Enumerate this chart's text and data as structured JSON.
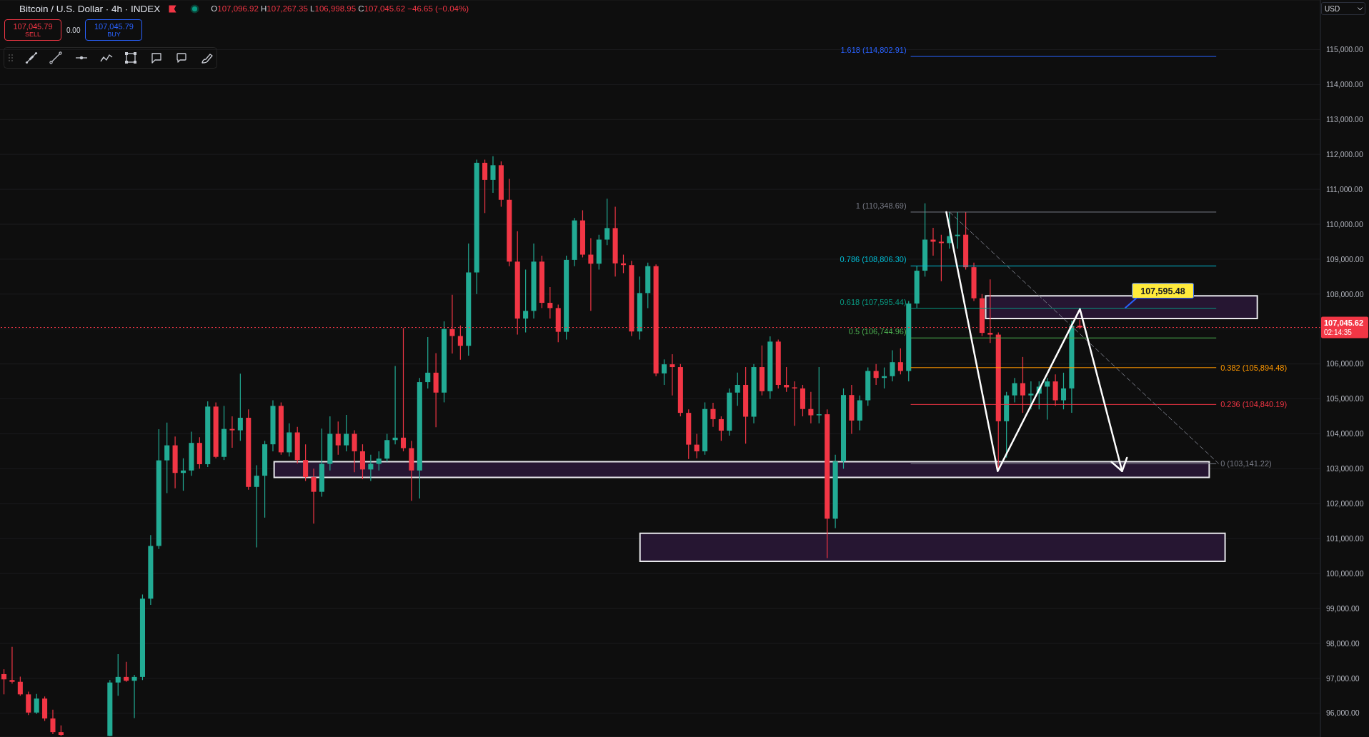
{
  "chart_data": {
    "type": "candlestick",
    "title": "Bitcoin / U.S. Dollar · 4h · INDEX",
    "subtitle": "O107,096.92 H107,267.35 L106,998.95 C107,045.62 −46.65 (−0.04%)",
    "ylabel": "USD",
    "categories": [
      null,
      null,
      null,
      null,
      null,
      null,
      null,
      null,
      null,
      null,
      null,
      null,
      null,
      null,
      null,
      null,
      null,
      null,
      null,
      null,
      null,
      null,
      null,
      null,
      null,
      null,
      null,
      null,
      null,
      null,
      null,
      null,
      null,
      null,
      null,
      null,
      null,
      null,
      null,
      null,
      null,
      null,
      null,
      null,
      null,
      null,
      null,
      null,
      null,
      null,
      null,
      null,
      null,
      null,
      null,
      null,
      null,
      null,
      null,
      null,
      null,
      null,
      null,
      null,
      null,
      null,
      null,
      null,
      null,
      null,
      null,
      null,
      null,
      null,
      null,
      null,
      null,
      null,
      null,
      null,
      null,
      null,
      null,
      null,
      null,
      null,
      null,
      null,
      null,
      null,
      null,
      null,
      null,
      null,
      null,
      null,
      null,
      null,
      null,
      null,
      null,
      null,
      null,
      null,
      null,
      null,
      null,
      null,
      null,
      null,
      null,
      null,
      null,
      null,
      null,
      null,
      null,
      null,
      null,
      null,
      null,
      null,
      null,
      null,
      null,
      null,
      null,
      null,
      null,
      null,
      null,
      null,
      null,
      null,
      null,
      null,
      null,
      null,
      null,
      null,
      null,
      null,
      null,
      null,
      null,
      null,
      null,
      null,
      null,
      null,
      null,
      null,
      null,
      null,
      null,
      null,
      null,
      null,
      null,
      null,
      null,
      null
    ],
    "ohlc": [
      [
        97120,
        97260,
        96540,
        96970
      ],
      [
        96950,
        97900,
        96850,
        96900
      ],
      [
        96900,
        97050,
        96500,
        96540
      ],
      [
        96540,
        96620,
        95950,
        96020
      ],
      [
        96020,
        96550,
        95980,
        96420
      ],
      [
        96420,
        96480,
        95780,
        95850
      ],
      [
        95850,
        96100,
        95400,
        95460
      ],
      [
        95460,
        95650,
        95350,
        95380
      ],
      null,
      null,
      null,
      null,
      null,
      [
        95350,
        96950,
        95340,
        96880
      ],
      [
        96880,
        97690,
        96500,
        97040
      ],
      [
        97040,
        97470,
        96900,
        96930
      ],
      [
        96930,
        97100,
        95860,
        97040
      ],
      [
        97040,
        99400,
        96950,
        99280
      ],
      [
        99280,
        101100,
        99100,
        100790
      ],
      [
        100790,
        104130,
        100700,
        103240
      ],
      [
        103240,
        104320,
        102300,
        103670
      ],
      [
        103670,
        103920,
        102440,
        102880
      ],
      [
        102880,
        103300,
        102370,
        102950
      ],
      [
        102950,
        104060,
        102800,
        103740
      ],
      [
        103740,
        103900,
        103000,
        103130
      ],
      [
        103130,
        104930,
        103050,
        104780
      ],
      [
        104780,
        104900,
        103300,
        103340
      ],
      [
        103340,
        104800,
        103250,
        104140
      ],
      [
        104140,
        104500,
        103600,
        104100
      ],
      [
        104100,
        105720,
        103800,
        104460
      ],
      [
        104460,
        104700,
        102400,
        102480
      ],
      [
        102480,
        103100,
        100750,
        102800
      ],
      [
        102800,
        103800,
        101600,
        103700
      ],
      [
        103700,
        104960,
        103500,
        104800
      ],
      [
        104800,
        104900,
        103400,
        103470
      ],
      [
        103470,
        104300,
        103350,
        104040
      ],
      [
        104040,
        104200,
        103150,
        103250
      ],
      [
        103250,
        103700,
        102650,
        102760
      ],
      [
        102760,
        103000,
        101430,
        102340
      ],
      [
        102340,
        104150,
        102200,
        103140
      ],
      [
        103140,
        104500,
        102950,
        104000
      ],
      [
        104000,
        104350,
        103400,
        103670
      ],
      [
        103670,
        104540,
        103500,
        104000
      ],
      [
        104000,
        104100,
        102900,
        103500
      ],
      [
        103500,
        103700,
        102700,
        102980
      ],
      [
        102980,
        103400,
        102650,
        103140
      ],
      [
        103140,
        103500,
        102950,
        103290
      ],
      [
        103290,
        104000,
        103200,
        103820
      ],
      [
        103820,
        105940,
        103700,
        103890
      ],
      [
        103890,
        107030,
        103500,
        103590
      ],
      [
        103590,
        103800,
        102080,
        102950
      ],
      [
        102950,
        105600,
        102150,
        105480
      ],
      [
        105480,
        106770,
        105300,
        105750
      ],
      [
        105750,
        106310,
        104190,
        105180
      ],
      [
        105180,
        107220,
        104900,
        107000
      ],
      [
        107000,
        107980,
        106300,
        106800
      ],
      [
        106800,
        107100,
        106120,
        106520
      ],
      [
        106520,
        109450,
        106240,
        108620
      ],
      [
        108620,
        111850,
        108000,
        111760
      ],
      [
        111760,
        111850,
        110320,
        111270
      ],
      [
        111270,
        111950,
        110900,
        111690
      ],
      [
        111690,
        111800,
        110500,
        110700
      ],
      [
        110700,
        111300,
        108800,
        108930
      ],
      [
        108930,
        109800,
        106840,
        107300
      ],
      [
        107300,
        108700,
        106900,
        107520
      ],
      [
        107520,
        109450,
        107300,
        108930
      ],
      [
        108930,
        109100,
        107600,
        107750
      ],
      [
        107750,
        108200,
        107300,
        107600
      ],
      [
        107600,
        107700,
        106620,
        106920
      ],
      [
        106920,
        109100,
        106700,
        108980
      ],
      [
        108980,
        110180,
        108800,
        110110
      ],
      [
        110110,
        110400,
        109050,
        109130
      ],
      [
        109130,
        109600,
        107520,
        108870
      ],
      [
        108870,
        109700,
        108700,
        109560
      ],
      [
        109560,
        110730,
        109400,
        109890
      ],
      [
        109890,
        110500,
        108500,
        108880
      ],
      [
        108880,
        109130,
        108600,
        108830
      ],
      [
        108830,
        108950,
        106800,
        106930
      ],
      [
        106930,
        108500,
        106700,
        108030
      ],
      [
        108030,
        108900,
        107600,
        108800
      ],
      [
        108800,
        108850,
        105650,
        105730
      ],
      [
        105730,
        106130,
        105400,
        105990
      ],
      [
        105990,
        106280,
        105100,
        105910
      ],
      [
        105910,
        106000,
        104500,
        104600
      ],
      [
        104600,
        104700,
        103280,
        103690
      ],
      [
        103690,
        104000,
        103300,
        103500
      ],
      [
        103500,
        104900,
        103400,
        104710
      ],
      [
        104710,
        104890,
        104200,
        104420
      ],
      [
        104420,
        104500,
        103800,
        104090
      ],
      [
        104090,
        105300,
        103950,
        105180
      ],
      [
        105180,
        105750,
        104800,
        105400
      ],
      [
        105400,
        105910,
        103720,
        104490
      ],
      [
        104490,
        106000,
        104300,
        105910
      ],
      [
        105910,
        106530,
        105100,
        105220
      ],
      [
        105220,
        106790,
        105000,
        106640
      ],
      [
        106640,
        106700,
        105300,
        105400
      ],
      [
        105400,
        105910,
        105200,
        105330
      ],
      [
        105330,
        105500,
        104230,
        105300
      ],
      [
        105300,
        105400,
        104500,
        104710
      ],
      [
        104710,
        105200,
        104300,
        104530
      ],
      [
        104530,
        105910,
        104300,
        104560
      ],
      [
        104560,
        104700,
        100440,
        101570
      ],
      [
        101570,
        103400,
        101300,
        103210
      ],
      [
        103210,
        105300,
        103000,
        105110
      ],
      [
        105110,
        105400,
        104000,
        104380
      ],
      [
        104380,
        105100,
        104100,
        104960
      ],
      [
        104960,
        105900,
        104800,
        105800
      ],
      [
        105800,
        106000,
        105400,
        105600
      ],
      [
        105600,
        105900,
        105300,
        105650
      ],
      [
        105650,
        106390,
        105500,
        106050
      ],
      [
        106050,
        106450,
        105700,
        105800
      ],
      [
        105800,
        107800,
        105500,
        107730
      ],
      [
        107730,
        108800,
        107600,
        108670
      ],
      [
        108670,
        110600,
        108500,
        109560
      ],
      [
        109560,
        109900,
        109100,
        109500
      ],
      [
        109500,
        109700,
        108370,
        109460
      ],
      [
        109460,
        110350,
        109300,
        109660
      ],
      [
        109660,
        110350,
        109300,
        109700
      ],
      [
        109700,
        110350,
        108700,
        108770
      ],
      [
        108770,
        108900,
        107800,
        107880
      ],
      [
        107880,
        108000,
        106800,
        106890
      ],
      [
        106890,
        108420,
        106600,
        106840
      ],
      [
        106840,
        106900,
        103000,
        104360
      ],
      [
        104360,
        105200,
        103320,
        105100
      ],
      [
        105100,
        105600,
        104900,
        105450
      ],
      [
        105450,
        106200,
        104600,
        105100
      ],
      [
        105100,
        105500,
        104700,
        105150
      ],
      [
        105150,
        105500,
        104700,
        105350
      ],
      [
        105350,
        105600,
        104410,
        105500
      ],
      [
        105500,
        105700,
        104800,
        104960
      ],
      [
        104960,
        105750,
        104700,
        105300
      ],
      [
        105300,
        107240,
        104600,
        107090
      ],
      [
        107096.92,
        107267.35,
        106998.95,
        107045.62
      ],
      null,
      null,
      null,
      null,
      null,
      null,
      null,
      null,
      null,
      null,
      null,
      null,
      null,
      null,
      null,
      null,
      null,
      null,
      null,
      null,
      null,
      null,
      null,
      null,
      null,
      null,
      null,
      null,
      null
    ],
    "colors": [
      "#f23645",
      "#f23645",
      "#f23645",
      "#f23645",
      "#22ab94",
      "#f23645",
      "#f23645",
      "#f23645",
      null,
      null,
      null,
      null,
      null,
      "#22ab94",
      "#22ab94",
      "#f23645",
      "#22ab94",
      "#22ab94",
      "#22ab94",
      "#22ab94",
      "#22ab94",
      "#f23645",
      "#22ab94",
      "#22ab94",
      "#f23645",
      "#22ab94",
      "#f23645",
      "#22ab94",
      "#f23645",
      "#22ab94",
      "#f23645",
      "#22ab94",
      "#22ab94",
      "#22ab94",
      "#f23645",
      "#22ab94",
      "#f23645",
      "#f23645",
      "#f23645",
      "#22ab94",
      "#22ab94",
      "#f23645",
      "#22ab94",
      "#f23645",
      "#f23645",
      "#22ab94",
      "#22ab94",
      "#22ab94",
      "#22ab94",
      "#f23645",
      "#f23645",
      "#22ab94",
      "#22ab94",
      "#f23645",
      "#22ab94",
      "#f23645",
      "#f23645",
      "#22ab94",
      "#22ab94",
      "#f23645",
      "#22ab94",
      "#f23645",
      "#f23645",
      "#f23645",
      "#22ab94",
      "#22ab94",
      "#f23645",
      "#f23645",
      "#f23645",
      "#22ab94",
      "#22ab94",
      "#f23645",
      "#f23645",
      "#22ab94",
      "#22ab94",
      "#f23645",
      "#f23645",
      "#f23645",
      "#22ab94",
      "#22ab94",
      "#f23645",
      "#22ab94",
      "#f23645",
      "#f23645",
      "#f23645",
      "#f23645",
      "#22ab94",
      "#f23645",
      "#f23645",
      "#22ab94",
      "#22ab94",
      "#f23645",
      "#22ab94",
      "#f23645",
      "#22ab94",
      "#f23645",
      "#f23645",
      "#f23645",
      "#f23645",
      "#f23645",
      "#22ab94",
      "#f23645",
      "#22ab94",
      "#22ab94",
      "#f23645",
      "#22ab94",
      "#22ab94",
      "#f23645",
      "#22ab94",
      "#22ab94",
      "#f23645",
      "#22ab94",
      "#22ab94",
      "#22ab94",
      "#f23645",
      "#f23645",
      "#22ab94",
      "#22ab94",
      "#f23645",
      "#f23645",
      "#f23645",
      "#f23645",
      "#f23645",
      "#22ab94",
      "#22ab94",
      "#f23645",
      "#22ab94",
      "#22ab94",
      "#22ab94",
      "#f23645",
      "#22ab94",
      "#22ab94",
      "#f23645",
      null,
      null,
      null,
      null,
      null,
      null,
      null,
      null,
      null,
      null,
      null,
      null,
      null,
      null,
      null,
      null,
      null,
      null,
      null,
      null,
      null,
      null,
      null,
      null,
      null,
      null,
      null,
      null,
      null
    ],
    "series": [
      {
        "type": "line",
        "color": "#787b86",
        "line_style": "dashed",
        "values": [
          null,
          null,
          null,
          null,
          null,
          null,
          null,
          null,
          null,
          null,
          null,
          null,
          null,
          null,
          null,
          null,
          null,
          null,
          null,
          null,
          null,
          null,
          null,
          null,
          null,
          null,
          null,
          null,
          null,
          null,
          null,
          null,
          null,
          null,
          null,
          null,
          null,
          null,
          null,
          null,
          null,
          null,
          null,
          null,
          null,
          null,
          null,
          null,
          null,
          null,
          null,
          null,
          null,
          null,
          null,
          null,
          null,
          null,
          null,
          null,
          null,
          null,
          null,
          null,
          null,
          null,
          null,
          null,
          null,
          null,
          null,
          null,
          null,
          null,
          null,
          null,
          null,
          null,
          null,
          null,
          null,
          null,
          null,
          null,
          null,
          null,
          null,
          null,
          null,
          null,
          null,
          null,
          null,
          null,
          null,
          null,
          null,
          null,
          null,
          null,
          null,
          null,
          null,
          null,
          null,
          null,
          null,
          null,
          null,
          null,
          null,
          null,
          null,
          null,
          null,
          null,
          110350,
          null,
          null,
          null,
          null,
          null,
          null,
          null,
          null,
          null,
          null,
          null,
          null,
          null,
          null,
          null,
          null,
          null,
          null,
          null,
          null,
          null,
          null,
          null,
          null,
          null,
          null,
          null,
          null,
          null,
          null,
          null,
          null,
          103150,
          null,
          null,
          null,
          null,
          null,
          null,
          null,
          null,
          null,
          null,
          null,
          null
        ]
      }
    ],
    "ylim": [
      95320,
      116420
    ],
    "yticks": [
      {
        "value": 96000,
        "label": "96,000.00"
      },
      {
        "value": 97000,
        "label": "97,000.00"
      },
      {
        "value": 98000,
        "label": "98,000.00"
      },
      {
        "value": 99000,
        "label": "99,000.00"
      },
      {
        "value": 100000,
        "label": "100,000.00"
      },
      {
        "value": 101000,
        "label": "101,000.00"
      },
      {
        "value": 102000,
        "label": "102,000.00"
      },
      {
        "value": 103000,
        "label": "103,000.00"
      },
      {
        "value": 104000,
        "label": "104,000.00"
      },
      {
        "value": 105000,
        "label": "105,000.00"
      },
      {
        "value": 106000,
        "label": "106,000.00"
      },
      {
        "value": 107000,
        "label": null
      },
      {
        "value": 108000,
        "label": "108,000.00"
      },
      {
        "value": 109000,
        "label": "109,000.00"
      },
      {
        "value": 110000,
        "label": "110,000.00"
      },
      {
        "value": 111000,
        "label": "111,000.00"
      },
      {
        "value": 112000,
        "label": "112,000.00"
      },
      {
        "value": 113000,
        "label": "113,000.00"
      },
      {
        "value": 114000,
        "label": "114,000.00"
      },
      {
        "value": 115000,
        "label": "115,000.00"
      }
    ],
    "tick_labels": "y",
    "grid": "y",
    "ref_lines": [
      {
        "axis": "y",
        "value": 114802.91,
        "label": "1.618 (114,802.91)",
        "color": "#2962ff"
      },
      {
        "axis": "y",
        "value": 110348.69,
        "label": "1 (110,348.69)",
        "color": "#787b86"
      },
      {
        "axis": "y",
        "value": 108806.3,
        "label": "0.786 (108,806.30)",
        "color": "#00bcd4"
      },
      {
        "axis": "y",
        "value": 107595.44,
        "label": "0.618 (107,595.44)",
        "color": "#089981"
      },
      {
        "axis": "y",
        "value": 106744.96,
        "label": "0.5 (106,744.96)",
        "color": "#4caf50"
      },
      {
        "axis": "y",
        "value": 105894.48,
        "label": "0.382 (105,894.48)",
        "color": "#ff9800"
      },
      {
        "axis": "y",
        "value": 104840.19,
        "label": "0.236 (104,840.19)",
        "color": "#f23645"
      },
      {
        "axis": "y",
        "value": 103141.22,
        "label": "0 (103,141.22)",
        "color": "#787b86"
      },
      {
        "axis": "y",
        "value": 107045.62,
        "label": "107,045.62",
        "color": "#f23645",
        "line_style": "dotted"
      }
    ],
    "bands": [
      {
        "axis": "y",
        "from": 107300,
        "to": 107950,
        "color": "#2a1838"
      },
      {
        "axis": "y",
        "from": 102750,
        "to": 103200,
        "color": "#2a1838"
      },
      {
        "axis": "y",
        "from": 100350,
        "to": 101150,
        "color": "#2a1838"
      }
    ],
    "annotations": [
      "107,045.79",
      "SELL",
      "0.00",
      "107,045.79",
      "BUY",
      "02:14:35",
      {
        "text": "107,595.48",
        "y": 107595.48
      }
    ]
  }
}
